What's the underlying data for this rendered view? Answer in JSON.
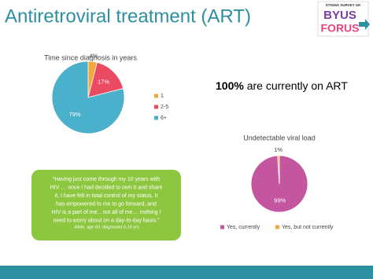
{
  "title": "Antiretroviral treatment (ART)",
  "logo": {
    "top": "STIGMA SURVEY UK",
    "line1": "BYUS",
    "line2": "FORUS"
  },
  "statement": {
    "bold": "100%",
    "text": "are currently on ART"
  },
  "quote": {
    "lines": [
      "“Having just come through my 10 years with",
      "HIV … once I had decided to own it and share",
      "it, I have felt in total control of my status. It",
      "has empowered to  me to go forward, and",
      "HIV is a part of me…not all of me… nothing I",
      "need to worry about on a day-to-day basis.”"
    ],
    "attribution": "-Male, age 60, diagnosed 6-10 yrs"
  },
  "chart_data": [
    {
      "type": "pie",
      "title": "Time since diagnosis in years",
      "categories": [
        "1",
        "2-5",
        "6+"
      ],
      "values": [
        4,
        17,
        79
      ],
      "value_labels": [
        "4%",
        "17%",
        "79%"
      ],
      "colors": [
        "#f5a83a",
        "#ea4a62",
        "#4bb0cc"
      ],
      "legend": "right"
    },
    {
      "type": "pie",
      "title": "Undetectable viral load",
      "categories": [
        "Yes, currently",
        "Yes, but not currently"
      ],
      "values": [
        99,
        1
      ],
      "value_labels": [
        "99%",
        "1%"
      ],
      "colors": [
        "#c4569f",
        "#f5a83a"
      ],
      "legend": "bottom"
    }
  ]
}
